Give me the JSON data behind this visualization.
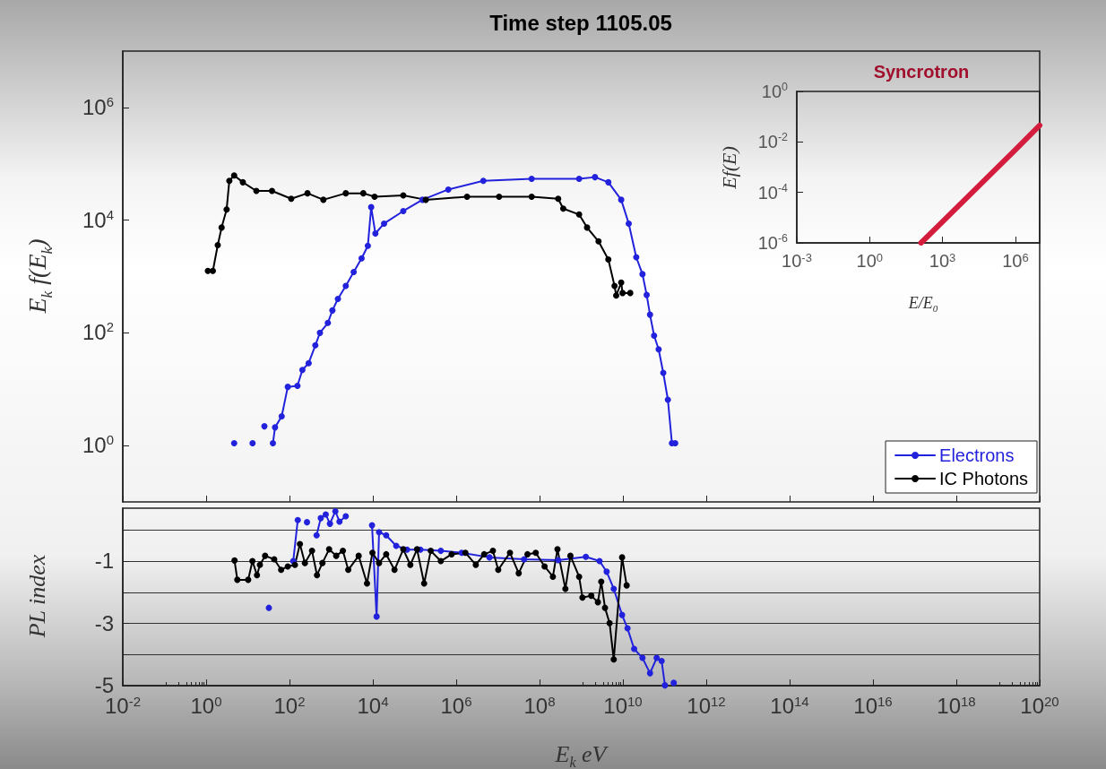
{
  "chart_data": [
    {
      "type": "line",
      "title": "Time step 1105.05",
      "ylabel": "E$_{k}$ f(E$_{k}$)",
      "log": "xy",
      "grid": false,
      "tick_labels": "y",
      "legend": "bottom right",
      "marker": "circle",
      "line_style": "solid",
      "xlim": [
        0.01,
        1e+20
      ],
      "xticks": [
        {
          "value": 0.01,
          "label": null
        },
        {
          "value": 1,
          "label": null
        },
        {
          "value": 100,
          "label": null
        },
        {
          "value": 10000.0,
          "label": null
        },
        {
          "value": 1000000.0,
          "label": null
        },
        {
          "value": 100000000.0,
          "label": null
        },
        {
          "value": 10000000000.0,
          "label": null
        },
        {
          "value": 1000000000000.0,
          "label": null
        },
        {
          "value": 100000000000000.0,
          "label": null
        },
        {
          "value": 1e+16,
          "label": null
        },
        {
          "value": 1e+18,
          "label": null
        },
        {
          "value": 1e+20,
          "label": null
        }
      ],
      "ylim": [
        0.1,
        10000000.0
      ],
      "yticks": [
        {
          "value": 1,
          "label": "10$^{0}$"
        },
        {
          "value": 100,
          "label": "10$^{2}$"
        },
        {
          "value": 10000.0,
          "label": "10$^{4}$"
        },
        {
          "value": 1000000.0,
          "label": "10$^{6}$"
        }
      ],
      "series": [
        {
          "name": "Electrons",
          "color": "#2222dd",
          "x": [
            4.7,
            8,
            13,
            18,
            25,
            32,
            40,
            45,
            65,
            91,
            155,
            204,
            288,
            417,
            537,
            832,
            1070,
            1450,
            2240,
            3470,
            5370,
            7590,
            9120,
            11500,
            18600,
            53700,
            155000,
            646000,
            4470000.0,
            64600000.0,
            890000000.0,
            2140000000.0,
            4470000000.0,
            9100000000.0,
            13800000000.0,
            20900000000.0,
            29500000000.0,
            37200000000.0,
            44700000000.0,
            56000000000.0,
            72000000000.0,
            93000000000.0,
            120000000000.0,
            150000000000.0,
            180000000000.0
          ],
          "values": [
            1.1,
            null,
            1.1,
            null,
            2.2,
            null,
            1.1,
            2.1,
            3.3,
            11,
            11.5,
            22,
            29,
            60,
            100,
            150,
            250,
            400,
            680,
            1200,
            2100,
            3500,
            17000,
            5800,
            8700,
            14500,
            23000,
            35000,
            50000,
            54000,
            54000,
            58000,
            47000,
            23000,
            8700,
            2200,
            1100,
            470,
            210,
            89,
            51,
            19.5,
            6.5,
            1.1,
            1.1
          ]
        },
        {
          "name": "IC Photons",
          "color": "#000000",
          "x": [
            1.1,
            1.45,
            1.9,
            2.35,
            3.1,
            3.6,
            4.7,
            7.6,
            16,
            38,
            110,
            270,
            650,
            2240,
            5900,
            11000,
            53700,
            186000,
            1820000.0,
            10700000.0,
            64600000.0,
            280000000.0,
            370000000.0,
            890000000.0,
            1380000000.0,
            2600000000.0,
            4470000000.0,
            6300000000.0,
            6900000000.0,
            9100000000.0,
            9800000000.0,
            15000000000.0
          ],
          "values": [
            1260,
            1260,
            3600,
            7400,
            15500,
            50000,
            62000,
            47000,
            33000,
            33000,
            24000,
            30000,
            23000,
            30000,
            30000,
            26000,
            27500,
            23000,
            26000,
            26000,
            26000,
            24000,
            16000,
            12600,
            7400,
            4200,
            2000,
            680,
            460,
            780,
            510,
            510
          ]
        }
      ]
    },
    {
      "type": "line",
      "title": "Syncrotron",
      "xlabel": "E/E$_{0}$",
      "ylabel": "Ef(E)",
      "log": "xy",
      "grid": false,
      "marker": "none",
      "line_style": "solid",
      "xlim": [
        0.001,
        10000000.0
      ],
      "xticks": [
        {
          "value": 0.001,
          "label": "10$^{-3}$"
        },
        {
          "value": 1,
          "label": "10$^{0}$"
        },
        {
          "value": 1000,
          "label": "10$^{3}$"
        },
        {
          "value": 1000000.0,
          "label": "10$^{6}$"
        }
      ],
      "ylim": [
        1e-06,
        1
      ],
      "yticks": [
        {
          "value": 1e-06,
          "label": "10$^{-6}$"
        },
        {
          "value": 0.0001,
          "label": "10$^{-4}$"
        },
        {
          "value": 0.01,
          "label": "10$^{-2}$"
        },
        {
          "value": 1,
          "label": "10$^{0}$"
        }
      ],
      "series": [
        {
          "color": "#d41c3c",
          "x": [
            130,
            1000,
            10000,
            100000,
            1000000,
            10000000
          ],
          "values": [
            1e-06,
            6.9e-06,
            6.2e-05,
            0.00055,
            0.0049,
            0.045
          ]
        }
      ]
    },
    {
      "type": "line",
      "xlabel": "E$_{k}$ eV",
      "ylabel": "PL index",
      "log": "x",
      "grid": "y",
      "marker": "circle",
      "line_style": "solid",
      "xlim": [
        0.01,
        1e+20
      ],
      "xticks": [
        {
          "value": 0.01,
          "label": "10$^{-2}$"
        },
        {
          "value": 1,
          "label": "10$^{0}$"
        },
        {
          "value": 100,
          "label": "10$^{2}$"
        },
        {
          "value": 10000.0,
          "label": "10$^{4}$"
        },
        {
          "value": 1000000.0,
          "label": "10$^{6}$"
        },
        {
          "value": 100000000.0,
          "label": "10$^{8}$"
        },
        {
          "value": 10000000000.0,
          "label": "10$^{10}$"
        },
        {
          "value": 1000000000000.0,
          "label": "10$^{12}$"
        },
        {
          "value": 100000000000000.0,
          "label": "10$^{14}$"
        },
        {
          "value": 1e+16,
          "label": "10$^{16}$"
        },
        {
          "value": 1e+18,
          "label": "10$^{18}$"
        },
        {
          "value": 1e+20,
          "label": "10$^{20}$"
        }
      ],
      "ylim": [
        -5,
        0.7
      ],
      "yticks": [
        {
          "value": 0,
          "label": null
        },
        -1,
        {
          "value": -2,
          "label": null
        },
        -3,
        {
          "value": -4,
          "label": null
        },
        -5
      ],
      "series": [
        {
          "color": "#2222dd",
          "x": [
            32,
            56,
            100,
            123,
            158,
            200,
            263,
            355,
            447,
            562,
            741,
            933,
            1260,
            1580,
            2240,
            3160,
            9550,
            12300,
            14100,
            20900,
            36300,
            66100,
            138000,
            427000,
            1350000.0,
            6300000.0,
            42700000.0,
            280000000.0,
            1290000000.0,
            2750000000.0,
            4070000000.0,
            6030000000.0,
            9550000000.0,
            12900000000.0,
            18600000000.0,
            29500000000.0,
            44700000000.0,
            64600000000.0,
            85000000000.0,
            102000000000.0,
            126000000000.0,
            166000000000.0
          ],
          "values": [
            -2.5,
            null,
            null,
            -1.0,
            0.32,
            null,
            0.25,
            null,
            -0.17,
            0.38,
            0.5,
            0.2,
            0.6,
            0.27,
            0.44,
            null,
            0.15,
            -2.78,
            -0.07,
            -0.17,
            -0.51,
            -0.63,
            -0.63,
            -0.67,
            -0.73,
            -0.88,
            -0.94,
            -0.97,
            -0.86,
            -1.0,
            -1.34,
            -1.89,
            -2.73,
            -3.16,
            -3.82,
            -4.11,
            -4.6,
            -4.11,
            -4.21,
            -4.99,
            null,
            -4.91
          ]
        },
        {
          "color": "#000000",
          "x": [
            4.8,
            5.6,
            10.2,
            12.9,
            16.6,
            19.5,
            26,
            43,
            63,
            91,
            135,
            178,
            234,
            347,
            457,
            617,
            891,
            1320,
            1910,
            2570,
            4570,
            7240,
            9770,
            14100,
            20900,
            33100,
            53700,
            79400,
            115000,
            170000,
            245000,
            427000,
            776000,
            1660000.0,
            2950000.0,
            4680000.0,
            7600000.0,
            10200000.0,
            19500000.0,
            31600000.0,
            51300000.0,
            81000000.0,
            132000000.0,
            209000000.0,
            269000000.0,
            417000000.0,
            550000000.0,
            890000000.0,
            1070000000.0,
            1740000000.0,
            2510000000.0,
            3020000000.0,
            3720000000.0,
            4790000000.0,
            6030000000.0,
            9550000000.0,
            12300000000.0
          ],
          "values": [
            -0.98,
            -1.6,
            -1.6,
            -1.0,
            -1.45,
            -1.12,
            -0.83,
            -0.94,
            -1.28,
            -1.17,
            -1.12,
            -0.45,
            -1.06,
            -0.67,
            -1.45,
            -1.06,
            -0.62,
            -0.83,
            -0.67,
            -1.28,
            -0.83,
            -1.72,
            -0.73,
            -1.06,
            -0.78,
            -1.28,
            -0.62,
            -1.12,
            -0.62,
            -1.72,
            -0.67,
            -1.0,
            -0.78,
            -0.73,
            -1.12,
            -0.78,
            -0.67,
            -1.28,
            -0.73,
            -1.39,
            -0.78,
            -0.73,
            -1.17,
            -1.5,
            -0.62,
            -1.89,
            -0.83,
            -1.5,
            -2.17,
            -2.11,
            -2.32,
            -1.66,
            -2.5,
            -2.99,
            -4.16,
            -0.88,
            -1.78
          ]
        }
      ]
    }
  ]
}
